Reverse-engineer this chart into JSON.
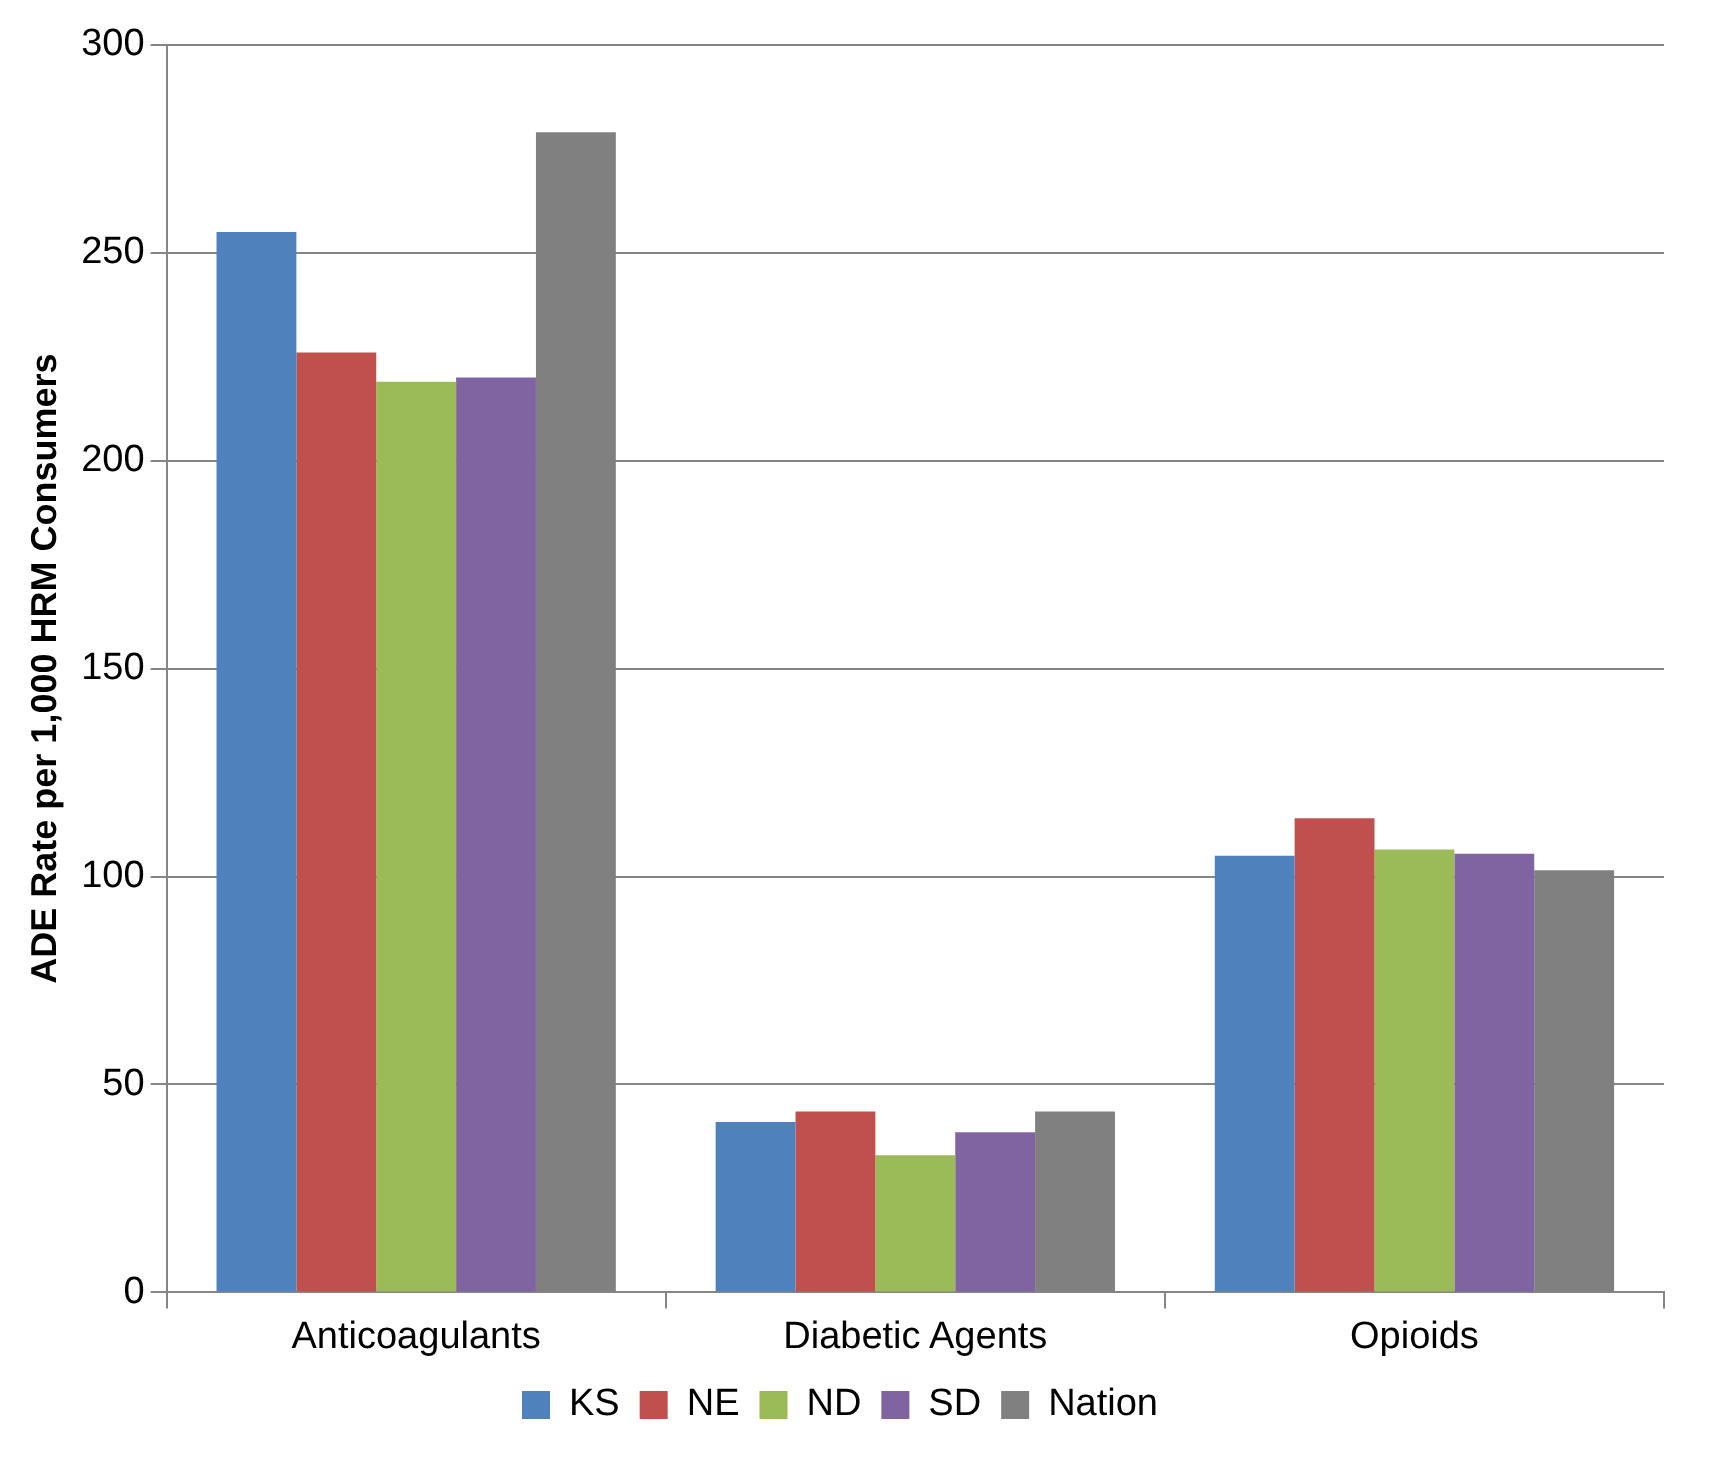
{
  "chart_data": {
    "type": "bar",
    "ylabel": "ADE Rate per 1,000 HRM Consumers",
    "categories": [
      "Anticoagulants",
      "Diabetic Agents",
      "Opioids"
    ],
    "series": [
      {
        "name": "KS",
        "color": "#4f81bd",
        "values": [
          255,
          41,
          105
        ]
      },
      {
        "name": "NE",
        "color": "#c0504d",
        "values": [
          226,
          43.5,
          114
        ]
      },
      {
        "name": "ND",
        "color": "#9bbb59",
        "values": [
          219,
          33,
          106.5
        ]
      },
      {
        "name": "SD",
        "color": "#8064a2",
        "values": [
          220,
          38.5,
          105.5
        ]
      },
      {
        "name": "Nation",
        "color": "#808080",
        "values": [
          279,
          43.5,
          101.5
        ]
      }
    ],
    "ylim": [
      0,
      300
    ],
    "yticks": [
      0,
      50,
      100,
      150,
      200,
      250,
      300
    ],
    "grid": "y",
    "legend": "bottom"
  }
}
